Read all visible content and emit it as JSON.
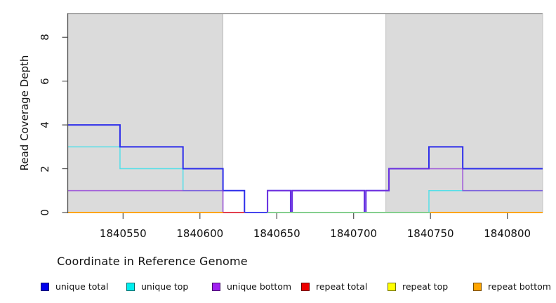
{
  "figure": {
    "x_axis_title": "Coordinate in Reference Genome",
    "y_axis_title": "Read Coverage Depth"
  },
  "chart_data": {
    "type": "line",
    "subtype": "step-coverage",
    "title": "",
    "xlabel": "Coordinate in Reference Genome",
    "ylabel": "Read Coverage Depth",
    "xlim": [
      1840514,
      1840823
    ],
    "ylim": [
      0,
      9.08
    ],
    "grid": false,
    "legend_position": "bottom",
    "x_ticks": [
      1840550,
      1840600,
      1840650,
      1840700,
      1840750,
      1840800
    ],
    "x_tick_labels": [
      "1840550",
      "1840600",
      "1840650",
      "1840700",
      "1840750",
      "1840800"
    ],
    "y_ticks": [
      0,
      2,
      4,
      6,
      8
    ],
    "y_tick_labels": [
      "0",
      "2",
      "4",
      "6",
      "8"
    ],
    "shaded_color": "#dbdbdb",
    "shaded_border_color": "#b3b3b3",
    "frame_color": "#8e8e8e",
    "axis_color": "#4d4d4d",
    "shaded_regions": [
      {
        "from": 1840514,
        "to": 1840615
      },
      {
        "from": 1840721,
        "to": 1840823
      }
    ],
    "series": [
      {
        "name": "repeat total",
        "legend_color": "#ee0000",
        "line_color": "#e2404f",
        "opacity": 1,
        "width": 1.6,
        "steps": [
          [
            1840514,
            0
          ]
        ]
      },
      {
        "name": "repeat top",
        "legend_color": "#ffff00",
        "line_color": "#f0f000",
        "opacity": 1,
        "width": 1.6,
        "steps": [
          [
            1840514,
            0
          ]
        ]
      },
      {
        "name": "repeat bottom",
        "legend_color": "#ffa500",
        "line_color": "#ffa500",
        "opacity": 1,
        "width": 1.8,
        "steps": [
          [
            1840514,
            0
          ]
        ]
      },
      {
        "name": "unique top",
        "legend_color": "#00eeee",
        "line_color": "#55dfe8",
        "opacity": 1,
        "width": 1.5,
        "steps": [
          [
            1840514,
            3
          ],
          [
            1840548,
            2
          ],
          [
            1840589,
            1
          ],
          [
            1840629,
            0
          ],
          [
            1840749,
            1
          ]
        ]
      },
      {
        "name": "unique total",
        "legend_color": "#0000ee",
        "line_color": "#2e2eea",
        "opacity": 1,
        "width": 2,
        "steps": [
          [
            1840514,
            4
          ],
          [
            1840548,
            3
          ],
          [
            1840589,
            2
          ],
          [
            1840615,
            1
          ],
          [
            1840629,
            0
          ],
          [
            1840644,
            1
          ],
          [
            1840659,
            0
          ],
          [
            1840660,
            1
          ],
          [
            1840707,
            0
          ],
          [
            1840708,
            1
          ],
          [
            1840723,
            2
          ],
          [
            1840749,
            3
          ],
          [
            1840771,
            2
          ]
        ]
      },
      {
        "name": "unique bottom",
        "legend_color": "#a020f0",
        "line_color": "#8b2fd8",
        "opacity": 0.7,
        "width": 1.7,
        "steps": [
          [
            1840514,
            1
          ],
          [
            1840615,
            0
          ],
          [
            1840644,
            1
          ],
          [
            1840659,
            0
          ],
          [
            1840660,
            1
          ],
          [
            1840707,
            0
          ],
          [
            1840708,
            1
          ],
          [
            1840723,
            2
          ],
          [
            1840771,
            1
          ]
        ]
      }
    ],
    "baseline_segments": [
      {
        "from": 1840514,
        "to": 1840615,
        "color": "#ffa500"
      },
      {
        "from": 1840615,
        "to": 1840629,
        "color": "#e2404f"
      },
      {
        "from": 1840629,
        "to": 1840644,
        "color": "#4646ee"
      },
      {
        "from": 1840644,
        "to": 1840750,
        "color": "#84cf8e"
      },
      {
        "from": 1840750,
        "to": 1840823,
        "color": "#ffa500"
      }
    ]
  },
  "legend": {
    "items": [
      {
        "label": "unique total",
        "color": "#0000ee"
      },
      {
        "label": "unique top",
        "color": "#00eeee"
      },
      {
        "label": "unique bottom",
        "color": "#a020f0"
      },
      {
        "label": "repeat total",
        "color": "#ee0000"
      },
      {
        "label": "repeat top",
        "color": "#ffff00"
      },
      {
        "label": "repeat bottom",
        "color": "#ffa500"
      }
    ]
  }
}
